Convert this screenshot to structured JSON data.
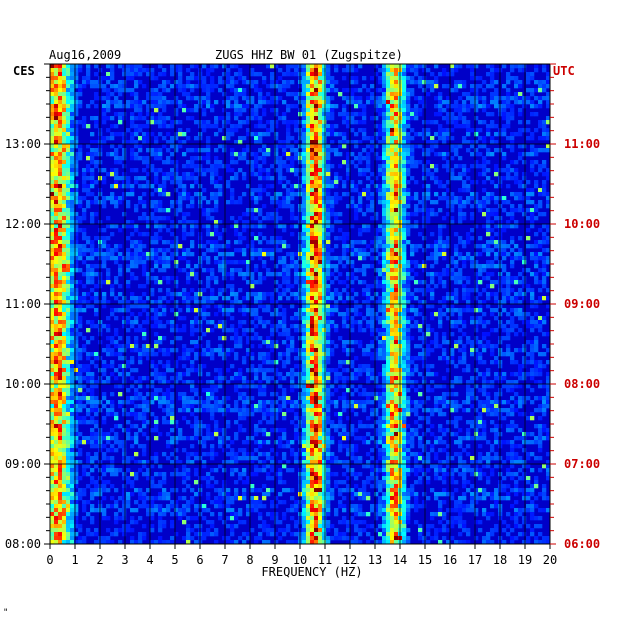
{
  "header": {
    "date": "Aug16,2009",
    "station": "ZUGS HHZ BW 01 (Zugspitze)",
    "left_zone": "CES",
    "right_zone": "UTC"
  },
  "footer": {
    "mark": "\""
  },
  "colors": {
    "background": "#ffffff",
    "axis": "#000000",
    "utc_labels": "#cc0000",
    "grid": "#000000",
    "spectrogram_low": "#0000c8",
    "spectrogram_high": "#ff0000"
  },
  "chart_data": {
    "type": "heatmap",
    "title": "ZUGS HHZ BW 01 (Zugspitze)",
    "xlabel": "FREQUENCY (HZ)",
    "ylabel": "",
    "xlim": [
      0,
      20
    ],
    "x_ticks": [
      "0",
      "1",
      "2",
      "3",
      "4",
      "5",
      "6",
      "7",
      "8",
      "9",
      "10",
      "11",
      "12",
      "13",
      "14",
      "15",
      "16",
      "17",
      "18",
      "19",
      "20"
    ],
    "y_ticks_left": [
      "08:00",
      "09:00",
      "10:00",
      "11:00",
      "12:00",
      "13:00"
    ],
    "y_ticks_right": [
      "06:00",
      "07:00",
      "08:00",
      "09:00",
      "10:00",
      "11:00"
    ],
    "y_range_hours_cest": [
      8.0,
      14.0
    ],
    "grid": true,
    "colormap": "jet",
    "dominant_bands_hz": [
      0.3,
      10.6,
      13.8
    ],
    "band_strength": [
      0.8,
      0.9,
      0.75
    ]
  }
}
